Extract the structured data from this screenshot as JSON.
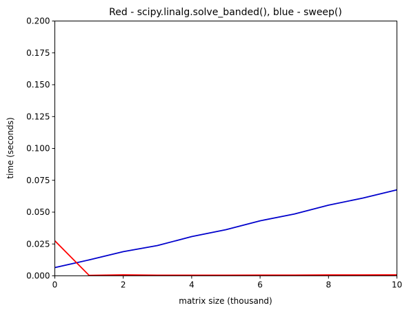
{
  "chart_data": {
    "type": "line",
    "title": "Red - scipy.linalg.solve_banded(), blue - sweep()",
    "xlabel": "matrix size (thousand)",
    "ylabel": "time (seconds)",
    "xlim": [
      0,
      10
    ],
    "ylim": [
      0,
      0.2
    ],
    "x_ticks": [
      "0",
      "2",
      "4",
      "6",
      "8",
      "10"
    ],
    "y_ticks": [
      "0.000",
      "0.025",
      "0.050",
      "0.075",
      "0.100",
      "0.125",
      "0.150",
      "0.175",
      "0.200"
    ],
    "grid": false,
    "x": [
      0,
      1,
      2,
      3,
      4,
      5,
      6,
      7,
      8,
      9,
      10
    ],
    "series": [
      {
        "color": "#0000cc",
        "values": [
          0.0065,
          0.0125,
          0.019,
          0.0238,
          0.0308,
          0.0362,
          0.0432,
          0.0485,
          0.0555,
          0.061,
          0.0675
        ]
      },
      {
        "color": "#ff0000",
        "values": [
          0.0275,
          0.0004,
          0.0008,
          0.0005,
          0.0005,
          0.0005,
          0.0006,
          0.0006,
          0.0007,
          0.0007,
          0.0008
        ]
      }
    ]
  }
}
